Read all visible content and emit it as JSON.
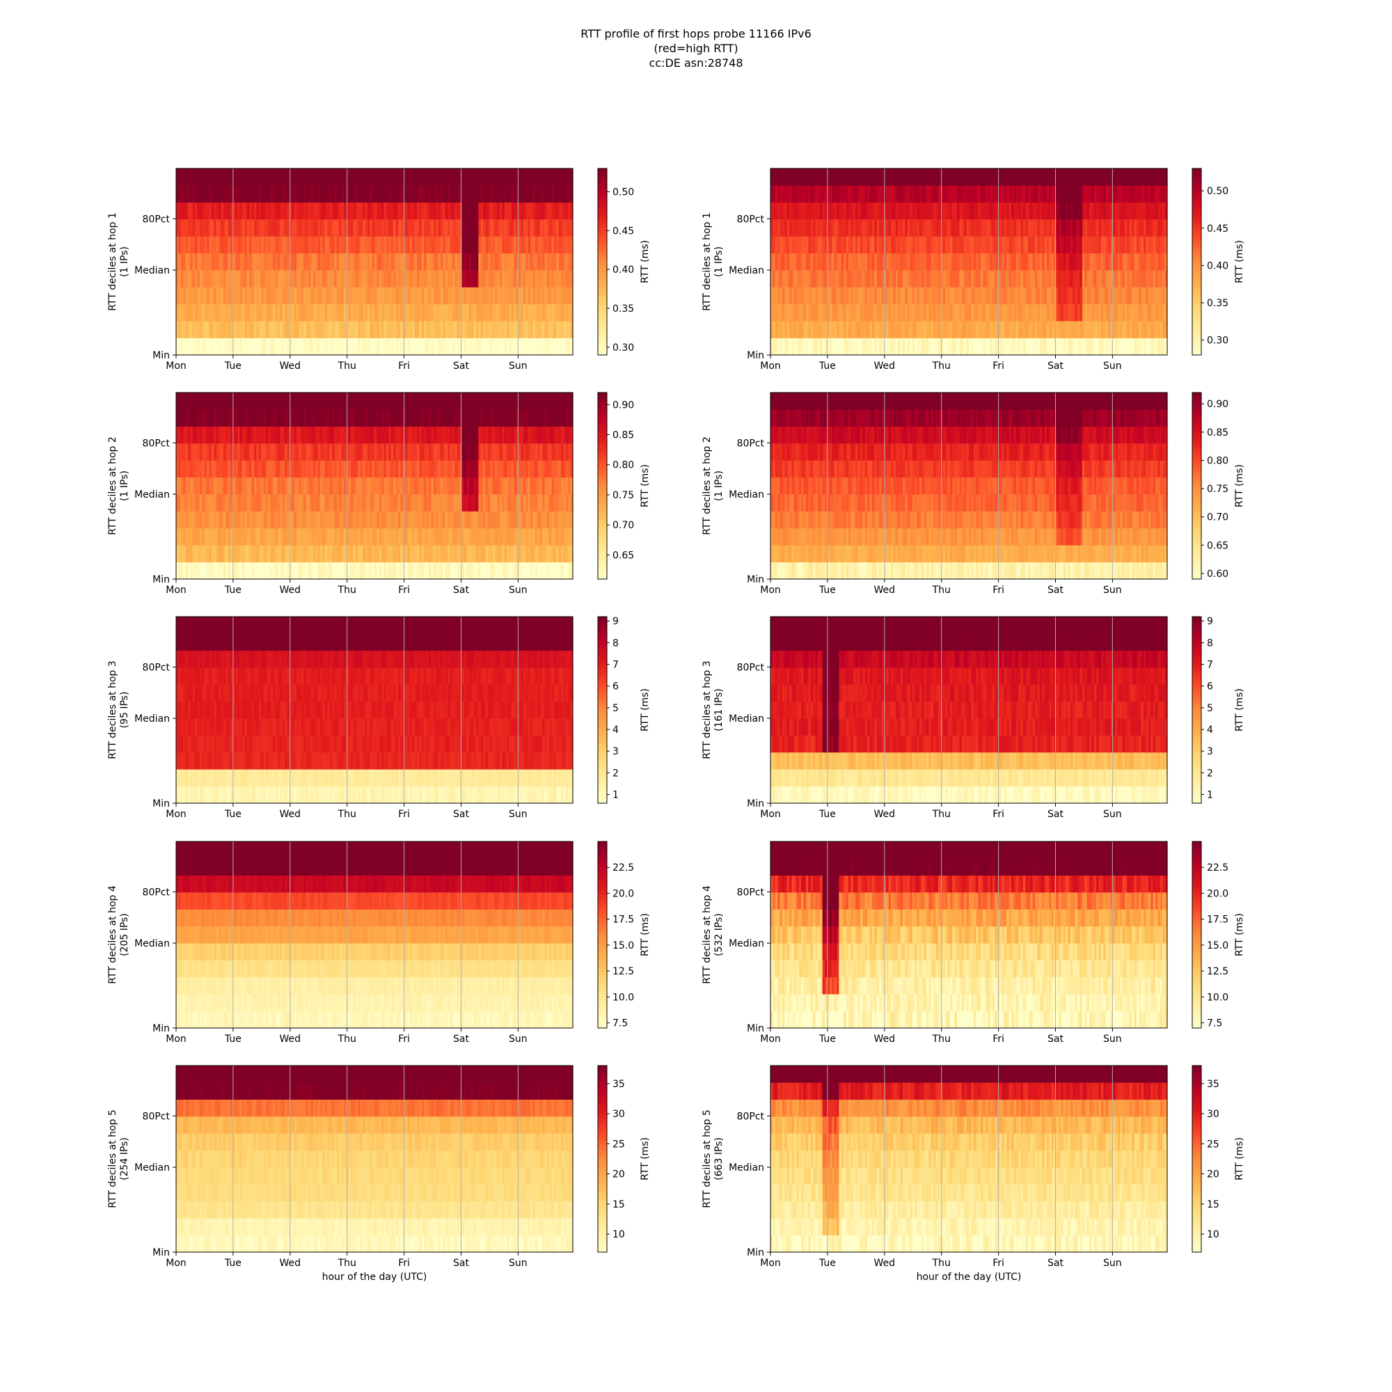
{
  "title": {
    "line1": "RTT profile of first hops probe 11166 IPv6",
    "line2": "(red=high RTT)",
    "line3": "cc:DE asn:28748"
  },
  "xlabel": "hour of the day (UTC)",
  "x_ticks": [
    "Mon",
    "Tue",
    "Wed",
    "Thu",
    "Fri",
    "Sat",
    "Sun"
  ],
  "y_ticks": [
    "80Pct",
    "Median",
    "Min"
  ],
  "colorbar_label": "RTT (ms)",
  "colormap": [
    "#ffffcc",
    "#ffeda0",
    "#fed976",
    "#feb24c",
    "#fd8d3c",
    "#fc4e2a",
    "#e31a1c",
    "#bd0026",
    "#800026"
  ],
  "chart_data": [
    {
      "type": "heatmap",
      "position": "row1-left",
      "ylabel_line1": "RTT deciles at hop 1",
      "ylabel_line2": "(1 IPs)",
      "clim": [
        0.29,
        0.53
      ],
      "colorbar_ticks": [
        "0.30",
        "0.35",
        "0.40",
        "0.45",
        "0.50"
      ],
      "colorbar_tick_values": [
        0.3,
        0.35,
        0.4,
        0.45,
        0.5
      ],
      "decile_levels": [
        0.29,
        0.37,
        0.385,
        0.4,
        0.41,
        0.42,
        0.435,
        0.45,
        0.47,
        0.53,
        0.55
      ],
      "dark_patches": [
        {
          "from_day": 5.0,
          "to_day": 5.3,
          "from_decile": 4,
          "boost": 0.1
        }
      ],
      "variability": 0.012
    },
    {
      "type": "heatmap",
      "position": "row1-right",
      "ylabel_line1": "RTT deciles at hop 1",
      "ylabel_line2": "(1 IPs)",
      "clim": [
        0.28,
        0.53
      ],
      "colorbar_ticks": [
        "0.30",
        "0.35",
        "0.40",
        "0.45",
        "0.50"
      ],
      "colorbar_tick_values": [
        0.3,
        0.35,
        0.4,
        0.45,
        0.5
      ],
      "decile_levels": [
        0.29,
        0.38,
        0.395,
        0.405,
        0.415,
        0.425,
        0.44,
        0.455,
        0.475,
        0.5,
        0.55
      ],
      "dark_patches": [
        {
          "from_day": 5.0,
          "to_day": 5.45,
          "from_decile": 2,
          "boost": 0.05
        }
      ],
      "variability": 0.012
    },
    {
      "type": "heatmap",
      "position": "row2-left",
      "ylabel_line1": "RTT deciles at hop 2",
      "ylabel_line2": "(1 IPs)",
      "clim": [
        0.61,
        0.92
      ],
      "colorbar_ticks": [
        "0.65",
        "0.70",
        "0.75",
        "0.80",
        "0.85",
        "0.90"
      ],
      "colorbar_tick_values": [
        0.65,
        0.7,
        0.75,
        0.8,
        0.85,
        0.9
      ],
      "decile_levels": [
        0.62,
        0.72,
        0.74,
        0.76,
        0.77,
        0.78,
        0.8,
        0.82,
        0.85,
        0.92,
        0.95
      ],
      "dark_patches": [
        {
          "from_day": 5.0,
          "to_day": 5.3,
          "from_decile": 4,
          "boost": 0.1
        }
      ],
      "variability": 0.015
    },
    {
      "type": "heatmap",
      "position": "row2-right",
      "ylabel_line1": "RTT deciles at hop 2",
      "ylabel_line2": "(1 IPs)",
      "clim": [
        0.59,
        0.92
      ],
      "colorbar_ticks": [
        "0.60",
        "0.65",
        "0.70",
        "0.75",
        "0.80",
        "0.85",
        "0.90"
      ],
      "colorbar_tick_values": [
        0.6,
        0.65,
        0.7,
        0.75,
        0.8,
        0.85,
        0.9
      ],
      "decile_levels": [
        0.62,
        0.72,
        0.745,
        0.765,
        0.78,
        0.79,
        0.81,
        0.83,
        0.86,
        0.9,
        0.95
      ],
      "dark_patches": [
        {
          "from_day": 5.0,
          "to_day": 5.45,
          "from_decile": 2,
          "boost": 0.05
        }
      ],
      "variability": 0.015
    },
    {
      "type": "heatmap",
      "position": "row3-left",
      "ylabel_line1": "RTT deciles at hop 3",
      "ylabel_line2": "(95 IPs)",
      "clim": [
        0.6,
        9.2
      ],
      "colorbar_ticks": [
        "1",
        "2",
        "3",
        "4",
        "5",
        "6",
        "7",
        "8",
        "9"
      ],
      "colorbar_tick_values": [
        1,
        2,
        3,
        4,
        5,
        6,
        7,
        8,
        9
      ],
      "decile_levels": [
        1.2,
        1.8,
        6.8,
        6.9,
        6.9,
        7.0,
        7.0,
        7.0,
        7.4,
        9.5,
        10
      ],
      "dark_patches": [],
      "variability": 0.25
    },
    {
      "type": "heatmap",
      "position": "row3-right",
      "ylabel_line1": "RTT deciles at hop 3",
      "ylabel_line2": "(161 IPs)",
      "clim": [
        0.6,
        9.2
      ],
      "colorbar_ticks": [
        "1",
        "2",
        "3",
        "4",
        "5",
        "6",
        "7",
        "8",
        "9"
      ],
      "colorbar_tick_values": [
        1,
        2,
        3,
        4,
        5,
        6,
        7,
        8,
        9
      ],
      "decile_levels": [
        0.9,
        2.0,
        3.5,
        6.9,
        7.0,
        7.0,
        7.1,
        7.2,
        7.8,
        9.5,
        10
      ],
      "dark_patches": [
        {
          "from_day": 0.88,
          "to_day": 1.16,
          "from_decile": 3,
          "boost": 2.0
        }
      ],
      "variability": 0.4
    },
    {
      "type": "heatmap",
      "position": "row4-left",
      "ylabel_line1": "RTT deciles at hop 4",
      "ylabel_line2": "(205 IPs)",
      "clim": [
        7,
        25
      ],
      "colorbar_ticks": [
        "7.5",
        "10.0",
        "12.5",
        "15.0",
        "17.5",
        "20.0",
        "22.5"
      ],
      "colorbar_tick_values": [
        7.5,
        10.0,
        12.5,
        15.0,
        17.5,
        20.0,
        22.5
      ],
      "decile_levels": [
        8.0,
        8.5,
        9.0,
        10.5,
        12.0,
        14.5,
        16.0,
        18.5,
        22.0,
        26,
        28
      ],
      "dark_patches": [],
      "variability": 0.5
    },
    {
      "type": "heatmap",
      "position": "row4-right",
      "ylabel_line1": "RTT deciles at hop 4",
      "ylabel_line2": "(532 IPs)",
      "clim": [
        7,
        25
      ],
      "colorbar_ticks": [
        "7.5",
        "10.0",
        "12.5",
        "15.0",
        "17.5",
        "20.0",
        "22.5"
      ],
      "colorbar_tick_values": [
        7.5,
        10.0,
        12.5,
        15.0,
        17.5,
        20.0,
        22.5
      ],
      "decile_levels": [
        8.0,
        8.5,
        9.0,
        10.0,
        11.0,
        12.5,
        14.5,
        16.5,
        20.0,
        26,
        28
      ],
      "dark_patches": [
        {
          "from_day": 0.88,
          "to_day": 1.16,
          "from_decile": 2,
          "boost": 10.0
        }
      ],
      "variability": 1.5
    },
    {
      "type": "heatmap",
      "position": "row5-left",
      "ylabel_line1": "RTT deciles at hop 5",
      "ylabel_line2": "(254 IPs)",
      "clim": [
        7,
        38
      ],
      "colorbar_ticks": [
        "10",
        "15",
        "20",
        "25",
        "30",
        "35"
      ],
      "colorbar_tick_values": [
        10,
        15,
        20,
        25,
        30,
        35
      ],
      "decile_levels": [
        8.5,
        9.5,
        12.5,
        14.0,
        14.5,
        15.0,
        16.0,
        18.0,
        24.0,
        38,
        40
      ],
      "dark_patches": [],
      "variability": 1.0
    },
    {
      "type": "heatmap",
      "position": "row5-right",
      "ylabel_line1": "RTT deciles at hop 5",
      "ylabel_line2": "(663 IPs)",
      "clim": [
        7,
        38
      ],
      "colorbar_ticks": [
        "10",
        "15",
        "20",
        "25",
        "30",
        "35"
      ],
      "colorbar_tick_values": [
        10,
        15,
        20,
        25,
        30,
        35
      ],
      "decile_levels": [
        8.5,
        9.5,
        11.0,
        12.5,
        13.5,
        14.5,
        16.0,
        18.0,
        22.0,
        30,
        40
      ],
      "dark_patches": [
        {
          "from_day": 0.88,
          "to_day": 1.16,
          "from_decile": 1,
          "boost": 8.0
        }
      ],
      "variability": 2.0
    }
  ]
}
